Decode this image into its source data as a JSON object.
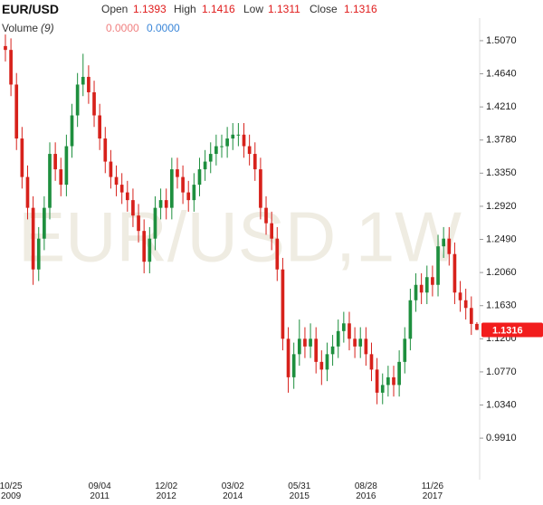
{
  "chart_data": {
    "type": "candlestick",
    "title": "EUR/USD",
    "watermark": "EUR/USD,1W",
    "header": {
      "open_label": "Open",
      "high_label": "High",
      "low_label": "Low",
      "close_label": "Close",
      "volume_label": "Volume",
      "volume_period": "(9)",
      "volume_values": [
        "0.0000",
        "0.0000"
      ]
    },
    "up_color": "#1e8f3e",
    "down_color": "#d7211b",
    "tag_color": "#f21d1d",
    "volume_colors": [
      "#f08080",
      "#3a86d8"
    ],
    "categories": [
      null,
      "10/25\n2009",
      null,
      null,
      null,
      null,
      null,
      null,
      null,
      null,
      null,
      null,
      null,
      null,
      null,
      null,
      null,
      "09/04\n2011",
      null,
      null,
      null,
      null,
      null,
      null,
      null,
      null,
      null,
      null,
      null,
      "12/02\n2012",
      null,
      null,
      null,
      null,
      null,
      null,
      null,
      null,
      null,
      null,
      null,
      "03/02\n2014",
      null,
      null,
      null,
      null,
      null,
      null,
      null,
      null,
      null,
      null,
      null,
      "05/31\n2015",
      null,
      null,
      null,
      null,
      null,
      null,
      null,
      null,
      null,
      null,
      null,
      "08/28\n2016",
      null,
      null,
      null,
      null,
      null,
      null,
      null,
      null,
      null,
      null,
      null,
      "11/26\n2017",
      null,
      null,
      null,
      null,
      null,
      null,
      null,
      null
    ],
    "open": [
      1.5,
      1.495,
      1.45,
      1.38,
      1.33,
      1.29,
      1.21,
      1.25,
      1.29,
      1.36,
      1.34,
      1.32,
      1.37,
      1.41,
      1.45,
      1.46,
      1.44,
      1.41,
      1.38,
      1.35,
      1.33,
      1.32,
      1.31,
      1.3,
      1.28,
      1.26,
      1.22,
      1.25,
      1.29,
      1.3,
      1.29,
      1.34,
      1.33,
      1.31,
      1.3,
      1.32,
      1.34,
      1.35,
      1.36,
      1.37,
      1.37,
      1.38,
      1.385,
      1.385,
      1.37,
      1.36,
      1.34,
      1.29,
      1.27,
      1.25,
      1.21,
      1.12,
      1.07,
      1.1,
      1.12,
      1.11,
      1.12,
      1.09,
      1.08,
      1.1,
      1.11,
      1.13,
      1.14,
      1.12,
      1.11,
      1.12,
      1.1,
      1.08,
      1.05,
      1.06,
      1.07,
      1.06,
      1.09,
      1.12,
      1.17,
      1.19,
      1.18,
      1.2,
      1.19,
      1.24,
      1.25,
      1.23,
      1.18,
      1.17,
      1.16,
      1.1393
    ],
    "high": [
      1.515,
      1.51,
      1.465,
      1.395,
      1.345,
      1.305,
      1.265,
      1.305,
      1.375,
      1.375,
      1.355,
      1.385,
      1.425,
      1.465,
      1.49,
      1.475,
      1.455,
      1.425,
      1.395,
      1.365,
      1.345,
      1.335,
      1.325,
      1.315,
      1.295,
      1.275,
      1.265,
      1.305,
      1.315,
      1.315,
      1.355,
      1.355,
      1.345,
      1.325,
      1.335,
      1.355,
      1.365,
      1.375,
      1.385,
      1.385,
      1.395,
      1.4,
      1.4,
      1.4,
      1.385,
      1.375,
      1.355,
      1.305,
      1.285,
      1.265,
      1.225,
      1.135,
      1.115,
      1.145,
      1.135,
      1.14,
      1.135,
      1.105,
      1.115,
      1.125,
      1.145,
      1.155,
      1.155,
      1.135,
      1.135,
      1.135,
      1.115,
      1.095,
      1.075,
      1.085,
      1.085,
      1.105,
      1.135,
      1.185,
      1.205,
      1.205,
      1.215,
      1.215,
      1.255,
      1.265,
      1.265,
      1.245,
      1.195,
      1.185,
      1.175,
      1.1416
    ],
    "low": [
      1.48,
      1.435,
      1.365,
      1.315,
      1.275,
      1.19,
      1.195,
      1.235,
      1.275,
      1.325,
      1.305,
      1.305,
      1.355,
      1.395,
      1.435,
      1.425,
      1.395,
      1.365,
      1.335,
      1.315,
      1.305,
      1.295,
      1.285,
      1.265,
      1.245,
      1.205,
      1.205,
      1.235,
      1.275,
      1.275,
      1.275,
      1.315,
      1.295,
      1.285,
      1.285,
      1.305,
      1.325,
      1.335,
      1.345,
      1.355,
      1.355,
      1.365,
      1.37,
      1.355,
      1.345,
      1.325,
      1.275,
      1.255,
      1.235,
      1.195,
      1.105,
      1.05,
      1.055,
      1.085,
      1.095,
      1.095,
      1.075,
      1.06,
      1.065,
      1.085,
      1.095,
      1.115,
      1.105,
      1.095,
      1.095,
      1.085,
      1.065,
      1.035,
      1.035,
      1.045,
      1.045,
      1.045,
      1.075,
      1.105,
      1.155,
      1.165,
      1.165,
      1.175,
      1.175,
      1.225,
      1.215,
      1.165,
      1.155,
      1.145,
      1.125,
      1.1311
    ],
    "close": [
      1.495,
      1.45,
      1.38,
      1.33,
      1.29,
      1.21,
      1.25,
      1.29,
      1.36,
      1.34,
      1.32,
      1.37,
      1.41,
      1.45,
      1.46,
      1.44,
      1.41,
      1.38,
      1.35,
      1.33,
      1.32,
      1.31,
      1.3,
      1.28,
      1.26,
      1.22,
      1.25,
      1.29,
      1.3,
      1.29,
      1.34,
      1.33,
      1.31,
      1.3,
      1.32,
      1.34,
      1.35,
      1.36,
      1.37,
      1.37,
      1.38,
      1.385,
      1.385,
      1.37,
      1.36,
      1.34,
      1.29,
      1.27,
      1.25,
      1.21,
      1.12,
      1.07,
      1.1,
      1.12,
      1.11,
      1.12,
      1.09,
      1.08,
      1.1,
      1.11,
      1.13,
      1.14,
      1.12,
      1.11,
      1.12,
      1.1,
      1.08,
      1.05,
      1.06,
      1.07,
      1.06,
      1.09,
      1.12,
      1.17,
      1.19,
      1.18,
      1.2,
      1.19,
      1.24,
      1.25,
      1.23,
      1.18,
      1.17,
      1.16,
      1.1393,
      1.1316
    ],
    "ylim": [
      0.9371,
      1.5363
    ],
    "yticks": [
      {
        "value": 0.991,
        "label": "0.9910"
      },
      {
        "value": 1.034,
        "label": "1.0340"
      },
      {
        "value": 1.077,
        "label": "1.0770"
      },
      {
        "value": 1.12,
        "label": "1.1200"
      },
      {
        "value": 1.163,
        "label": "1.1630"
      },
      {
        "value": 1.206,
        "label": "1.2060"
      },
      {
        "value": 1.249,
        "label": "1.2490"
      },
      {
        "value": 1.292,
        "label": "1.2920"
      },
      {
        "value": 1.335,
        "label": "1.3350"
      },
      {
        "value": 1.378,
        "label": "1.3780"
      },
      {
        "value": 1.421,
        "label": "1.4210"
      },
      {
        "value": 1.464,
        "label": "1.4640"
      },
      {
        "value": 1.507,
        "label": "1.5070"
      }
    ]
  }
}
